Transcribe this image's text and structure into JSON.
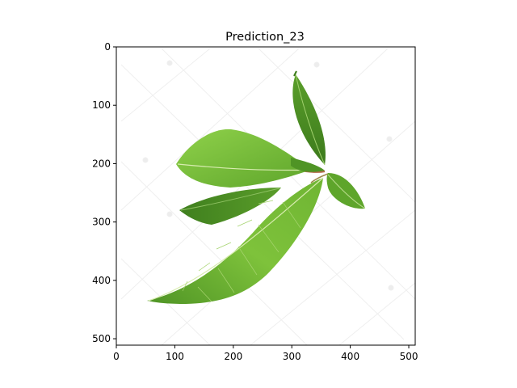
{
  "chart_data": {
    "type": "image",
    "title": "Prediction_23",
    "xlabel": "",
    "ylabel": "",
    "xlim": [
      0,
      511
    ],
    "ylim": [
      511,
      0
    ],
    "y_inverted": true,
    "xticks": [
      0,
      100,
      200,
      300,
      400,
      500
    ],
    "yticks": [
      0,
      100,
      200,
      300,
      400,
      500
    ],
    "grid": false,
    "image_content": "green leaves on white background",
    "colors": {
      "leaf_light": "#7cc13a",
      "leaf_mid": "#5ea52b",
      "leaf_dark": "#3f7f1e",
      "vein": "#d8ecb0",
      "stem": "#b36a4a",
      "watermark": "#ececec"
    }
  }
}
